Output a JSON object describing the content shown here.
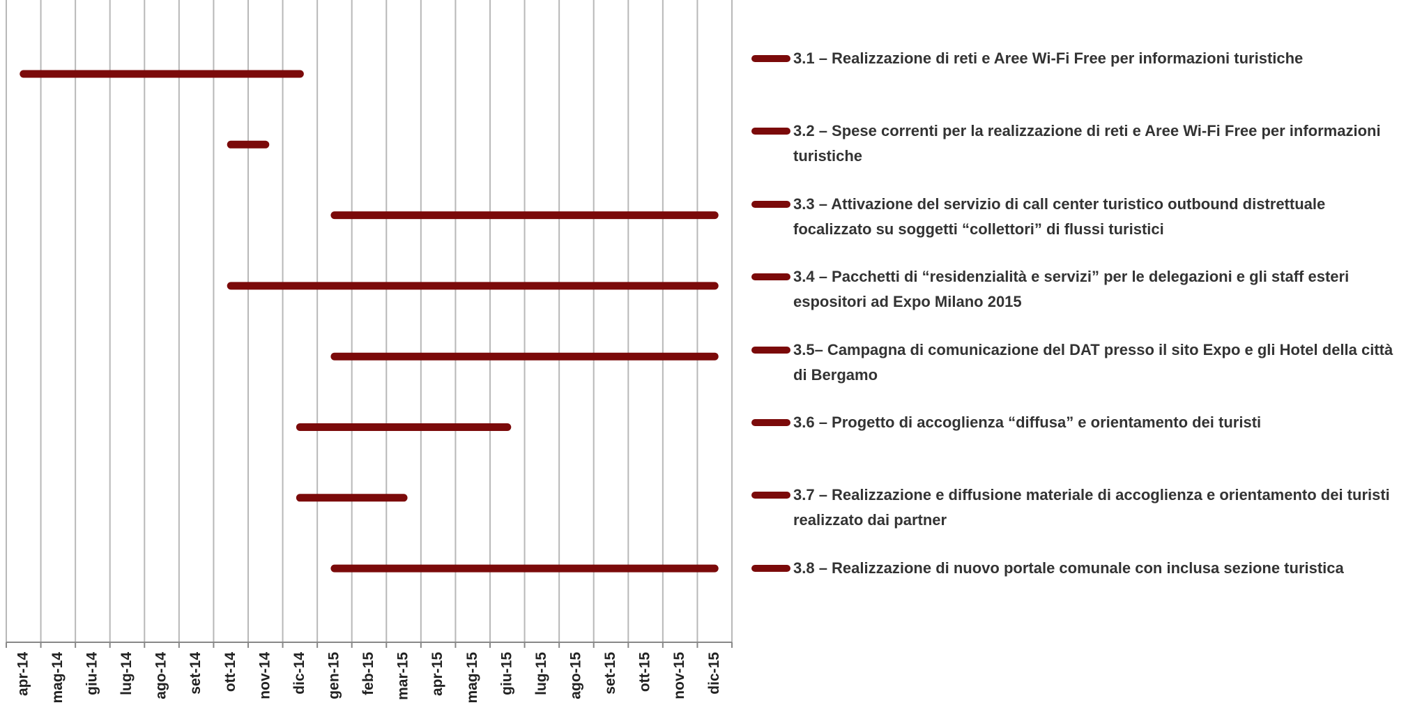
{
  "chart_data": {
    "type": "gantt",
    "categories": [
      "apr-14",
      "mag-14",
      "giu-14",
      "lug-14",
      "ago-14",
      "set-14",
      "ott-14",
      "nov-14",
      "dic-14",
      "gen-15",
      "feb-15",
      "mar-15",
      "apr-15",
      "mag-15",
      "giu-15",
      "lug-15",
      "ago-15",
      "set-15",
      "ott-15",
      "nov-15",
      "dic-15"
    ],
    "color": "#7b0a0a",
    "grid": true,
    "tasks": [
      {
        "name": "3.1 – Realizzazione di reti e Aree Wi-Fi Free  per informazioni turistiche",
        "start": "apr-14",
        "end": "dic-14"
      },
      {
        "name": "3.2 – Spese correnti per la realizzazione di reti e Aree Wi-Fi Free  per informazioni turistiche",
        "start": "ott-14",
        "end": "nov-14"
      },
      {
        "name": "3.3 – Attivazione del servizio di call center turistico outbound distrettuale focalizzato su soggetti “collettori” di flussi turistici",
        "start": "gen-15",
        "end": "dic-15"
      },
      {
        "name": "3.4 – Pacchetti di “residenzialità e servizi” per le delegazioni e gli staff esteri espositori ad Expo Milano 2015",
        "start": "ott-14",
        "end": "dic-15"
      },
      {
        "name": "3.5– Campagna di comunicazione del DAT presso il sito Expo  e gli Hotel della città di Bergamo",
        "start": "gen-15",
        "end": "dic-15"
      },
      {
        "name": "3.6 – Progetto di accoglienza “diffusa” e orientamento dei turisti",
        "start": "dic-14",
        "end": "giu-15"
      },
      {
        "name": "3.7 – Realizzazione e diffusione materiale di accoglienza e orientamento dei turisti realizzato dai partner",
        "start": "dic-14",
        "end": "mar-15"
      },
      {
        "name": "3.8 – Realizzazione di nuovo portale comunale con  inclusa sezione turistica",
        "start": "gen-15",
        "end": "dic-15"
      }
    ]
  }
}
